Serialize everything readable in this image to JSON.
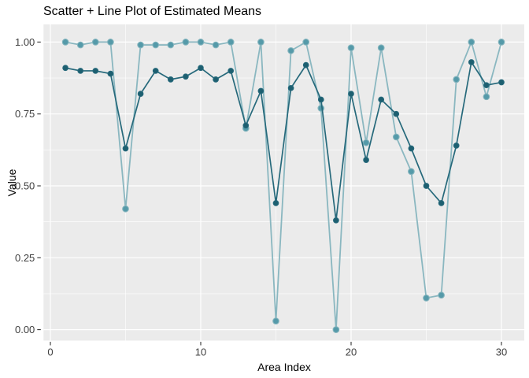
{
  "chart_data": {
    "type": "line",
    "title": "Scatter + Line Plot of Estimated Means",
    "xlabel": "Area Index",
    "ylabel": "Value",
    "x": [
      1,
      2,
      3,
      4,
      5,
      6,
      7,
      8,
      9,
      10,
      11,
      12,
      13,
      14,
      15,
      16,
      17,
      18,
      19,
      20,
      21,
      22,
      23,
      24,
      25,
      26,
      27,
      28,
      29,
      30
    ],
    "series": [
      {
        "name": "light-teal-series",
        "line_color": "#8ab7c0",
        "marker_color": "#559aa9",
        "marker_stroke": "#84b4bd",
        "marker_radius": 3.8,
        "line_width": 1.8,
        "values": [
          1.0,
          0.99,
          1.0,
          1.0,
          0.42,
          0.99,
          0.99,
          0.99,
          1.0,
          1.0,
          0.99,
          1.0,
          0.7,
          1.0,
          0.03,
          0.97,
          1.0,
          0.77,
          0.0,
          0.98,
          0.65,
          0.98,
          0.67,
          0.55,
          0.11,
          0.12,
          0.87,
          1.0,
          0.81,
          1.0
        ]
      },
      {
        "name": "dark-teal-series",
        "line_color": "#26697b",
        "marker_color": "#1d5f70",
        "marker_stroke": "#26697b",
        "marker_radius": 3.3,
        "line_width": 1.7,
        "values": [
          0.91,
          0.9,
          0.9,
          0.89,
          0.63,
          0.82,
          0.9,
          0.87,
          0.88,
          0.91,
          0.87,
          0.9,
          0.71,
          0.83,
          0.44,
          0.84,
          0.92,
          0.8,
          0.38,
          0.82,
          0.59,
          0.8,
          0.75,
          0.63,
          0.5,
          0.44,
          0.64,
          0.93,
          0.85,
          0.86
        ]
      }
    ],
    "xlim": [
      0,
      30
    ],
    "ylim": [
      0.0,
      1.0
    ],
    "xticks": {
      "values": [
        0,
        10,
        20,
        30
      ],
      "labels": [
        "0",
        "10",
        "20",
        "30"
      ],
      "minor": [
        5,
        15,
        25
      ]
    },
    "yticks": {
      "values": [
        0,
        0.25,
        0.5,
        0.75,
        1
      ],
      "labels": [
        "0.00",
        "0.25",
        "0.50",
        "0.75",
        "1.00"
      ],
      "minor": [
        0.125,
        0.375,
        0.625,
        0.875
      ]
    },
    "grid": true,
    "legend": "none",
    "panel_bg": "#ebebeb",
    "grid_color": "#ffffff",
    "tick_color": "#333333",
    "tick_label_color": "#404040",
    "tick_label_size": 13,
    "background": "#ffffff"
  }
}
